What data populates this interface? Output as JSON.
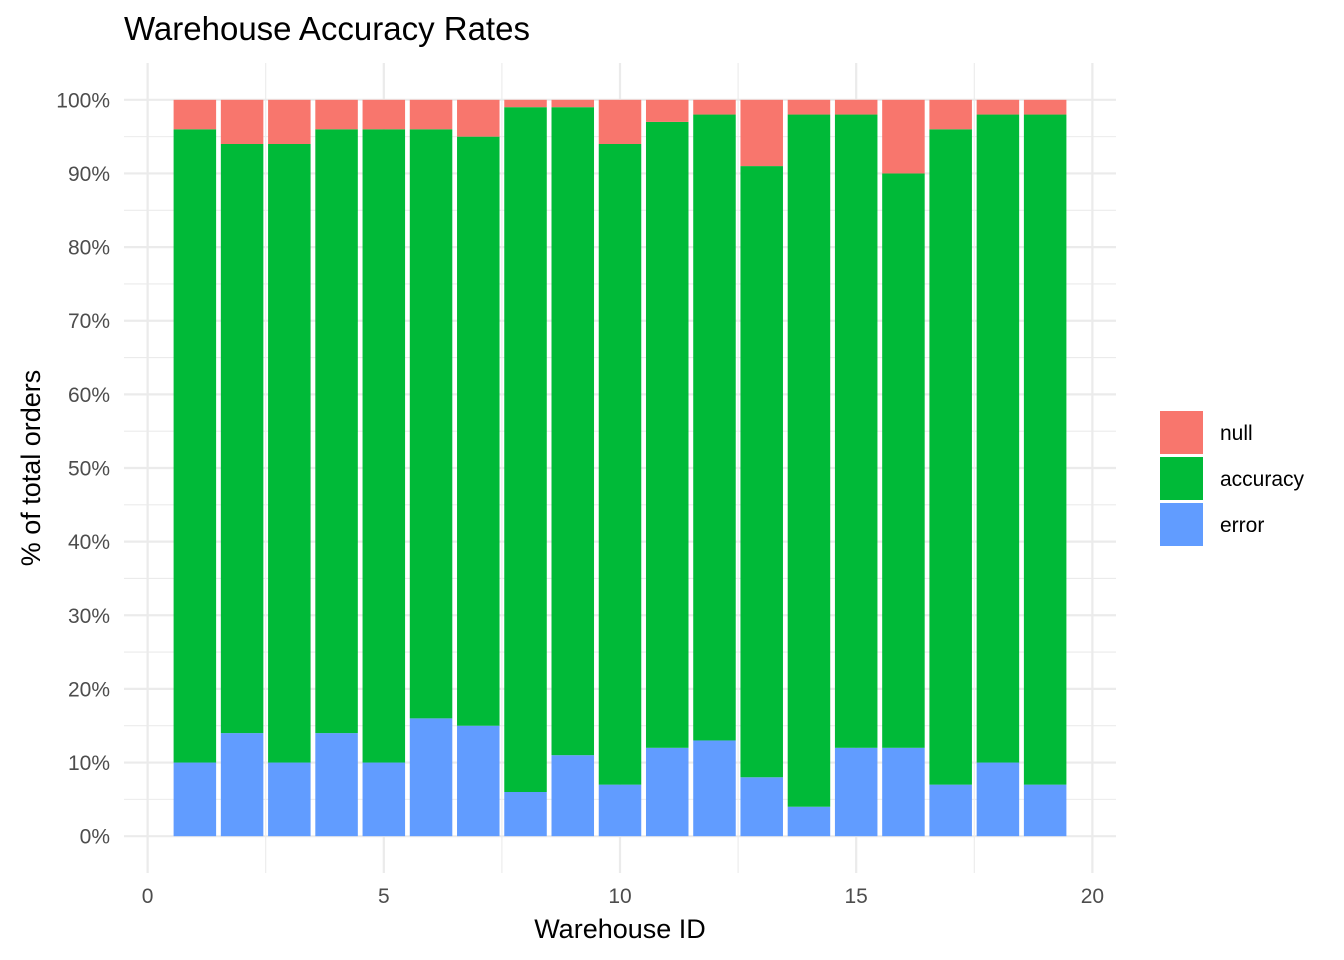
{
  "chart_data": {
    "type": "bar",
    "stacked": true,
    "title": "Warehouse Accuracy Rates",
    "xlabel": "Warehouse ID",
    "ylabel": "% of total orders",
    "xlim": [
      -0.5,
      20.5
    ],
    "ylim": [
      -5,
      105
    ],
    "x_ticks": [
      0,
      5,
      10,
      15,
      20
    ],
    "y_ticks": [
      0,
      10,
      20,
      30,
      40,
      50,
      60,
      70,
      80,
      90,
      100
    ],
    "y_tick_labels": [
      "0%",
      "10%",
      "20%",
      "30%",
      "40%",
      "50%",
      "60%",
      "70%",
      "80%",
      "90%",
      "100%"
    ],
    "grid": true,
    "legend_position": "right",
    "categories": [
      1,
      2,
      3,
      4,
      5,
      6,
      7,
      8,
      9,
      10,
      11,
      12,
      13,
      14,
      15,
      16,
      17,
      18,
      19
    ],
    "series": [
      {
        "name": "error",
        "color": "#619CFF",
        "values": [
          10,
          14,
          10,
          14,
          10,
          16,
          15,
          6,
          11,
          7,
          12,
          13,
          8,
          4,
          12,
          12,
          7,
          10,
          7
        ]
      },
      {
        "name": "accuracy",
        "color": "#00BA38",
        "values": [
          86,
          80,
          84,
          82,
          86,
          80,
          80,
          93,
          88,
          87,
          85,
          85,
          83,
          94,
          86,
          78,
          89,
          88,
          91
        ]
      },
      {
        "name": "null",
        "color": "#F8766D",
        "values": [
          4,
          6,
          6,
          4,
          4,
          4,
          5,
          1,
          1,
          6,
          3,
          2,
          9,
          2,
          2,
          10,
          4,
          2,
          2
        ]
      }
    ],
    "legend_order": [
      "null",
      "accuracy",
      "error"
    ]
  }
}
